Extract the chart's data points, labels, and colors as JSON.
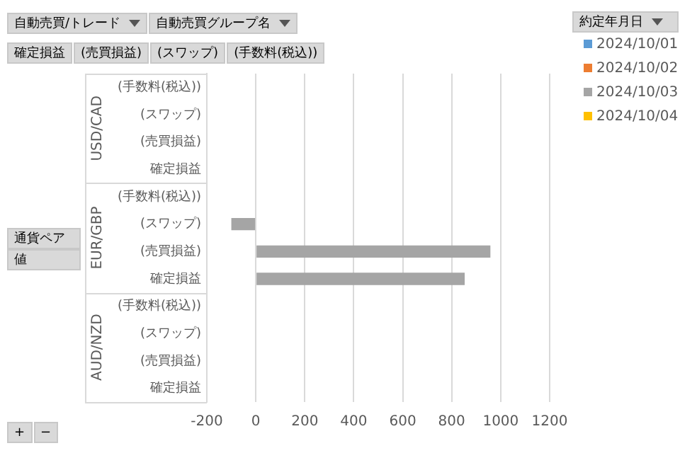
{
  "chart_data": {
    "type": "bar",
    "orientation": "horizontal",
    "legend_title": "約定年月日",
    "legend": "right",
    "grid": "x",
    "categories": [
      "(手数料(税込))",
      "(スワップ)",
      "(売買損益)",
      "確定損益",
      "(手数料(税込))",
      "(スワップ)",
      "(売買損益)",
      "確定損益",
      "(手数料(税込))",
      "(スワップ)",
      "(売買損益)",
      "確定損益"
    ],
    "series": [
      {
        "name": "2024/10/01",
        "color": "#5b9bd5",
        "values": [
          null,
          null,
          null,
          null,
          null,
          null,
          null,
          null,
          null,
          null,
          null,
          null
        ]
      },
      {
        "name": "2024/10/02",
        "color": "#ed7d31",
        "values": [
          null,
          null,
          null,
          null,
          null,
          null,
          null,
          null,
          null,
          null,
          null,
          null
        ]
      },
      {
        "name": "2024/10/03",
        "color": "#a5a5a5",
        "values": [
          null,
          null,
          null,
          null,
          null,
          -100,
          958,
          853,
          null,
          null,
          null,
          null
        ]
      },
      {
        "name": "2024/10/04",
        "color": "#ffc000",
        "values": [
          null,
          null,
          null,
          null,
          null,
          null,
          null,
          null,
          null,
          null,
          null,
          null
        ]
      }
    ],
    "xlim": [
      -200,
      1200
    ],
    "xticks": [
      -200,
      0,
      200,
      400,
      600,
      800,
      1000,
      1200
    ],
    "annotations": [
      "USD/CAD",
      "EUR/GBP",
      "AUD/NZD",
      "自動売買/トレード",
      "自動売買グループ名",
      "確定損益",
      "(売買損益)",
      "(スワップ)",
      "(手数料(税込))",
      "通貨ペア",
      "値",
      "+",
      "−"
    ]
  }
}
